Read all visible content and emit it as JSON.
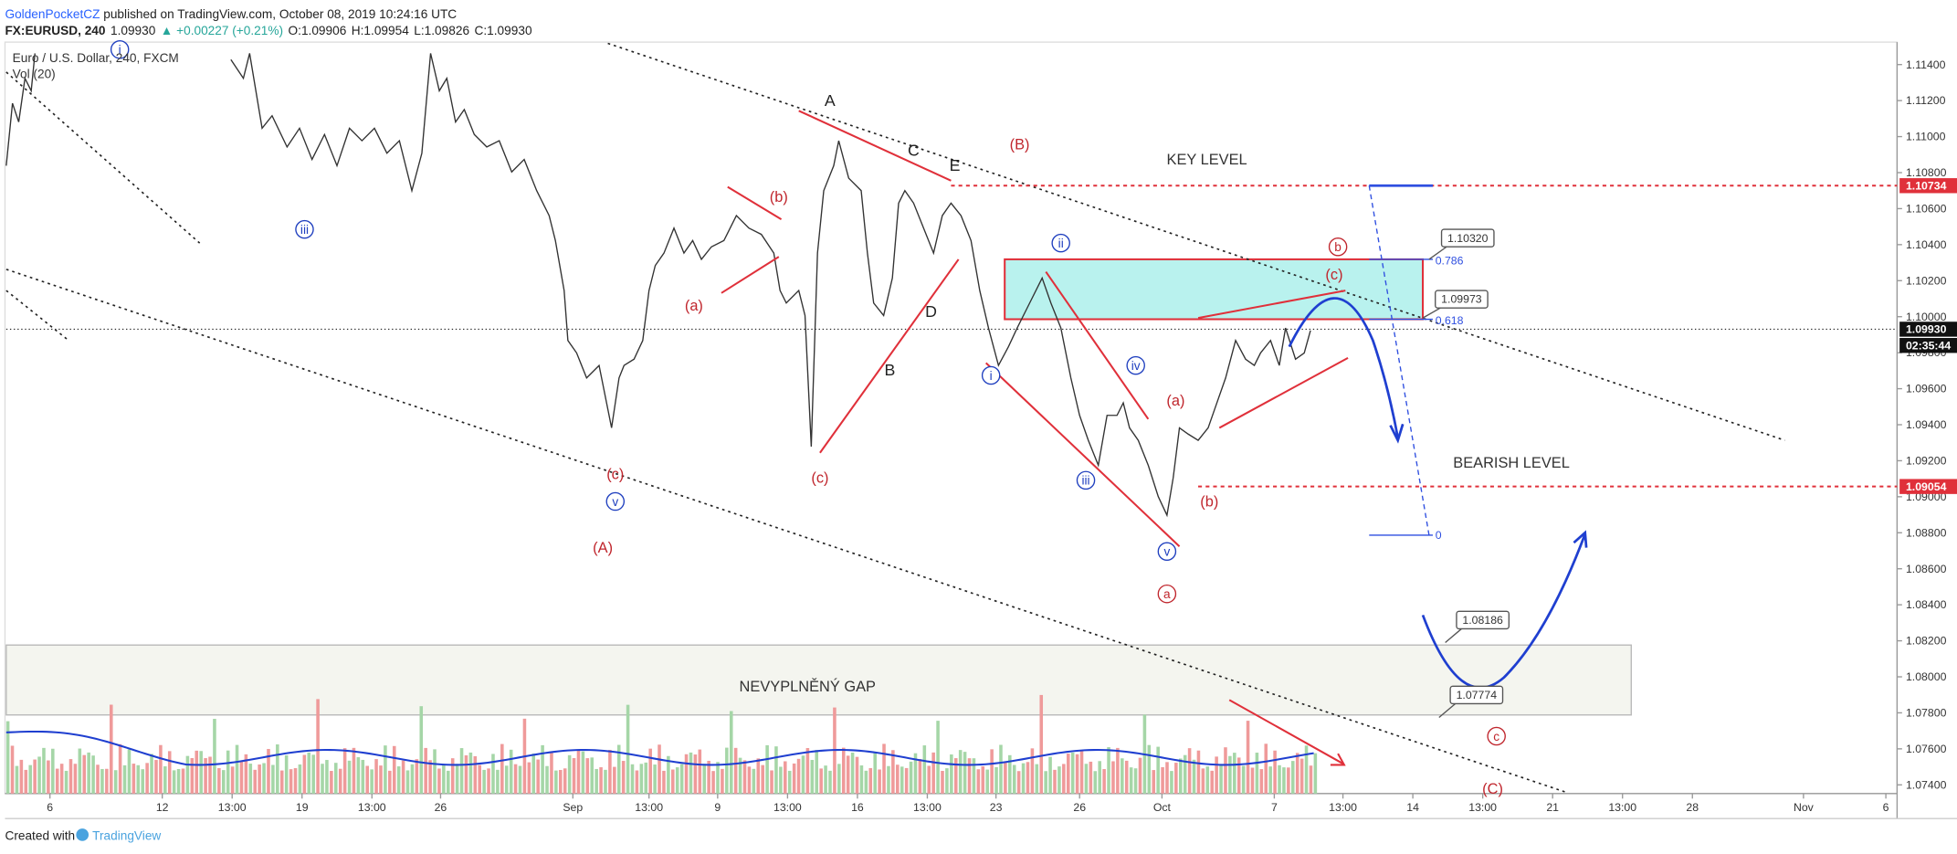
{
  "header": {
    "author": "GoldenPocketCZ",
    "published": " published on TradingView.com, October 08, 2019 10:24:16 UTC",
    "symbol": "FX:EURUSD, 240",
    "last": "1.09930",
    "change": "▲ +0.00227 (+0.21%)",
    "open": "O:1.09906",
    "high": "H:1.09954",
    "low": "L:1.09826",
    "close": "C:1.09930"
  },
  "legend": {
    "instrument": "Euro / U.S. Dollar, 240, FXCM",
    "volume": "Vol (20)"
  },
  "price_axis": [
    "1.11400",
    "1.11200",
    "1.11000",
    "1.10800",
    "1.10600",
    "1.10400",
    "1.10200",
    "1.10000",
    "1.09800",
    "1.09600",
    "1.09400",
    "1.09200",
    "1.09000",
    "1.08800",
    "1.08600",
    "1.08400",
    "1.08200",
    "1.08000",
    "1.07800",
    "1.07600",
    "1.07400"
  ],
  "price_tags": {
    "key": "1.10734",
    "last": "1.09930",
    "countdown": "02:35:44",
    "bearish": "1.09054"
  },
  "time_axis": [
    "6",
    "12",
    "13:00",
    "19",
    "13:00",
    "26",
    "Sep",
    "13:00",
    "9",
    "13:00",
    "16",
    "13:00",
    "23",
    "26",
    "Oct",
    "7",
    "13:00",
    "14",
    "13:00",
    "21",
    "13:00",
    "28",
    "Nov",
    "6"
  ],
  "callouts": [
    "1.10320",
    "1.09973",
    "1.08186",
    "1.07774"
  ],
  "fib": [
    "0.786",
    "0.618",
    "0"
  ],
  "circled_blue": [
    "i",
    "iii",
    "v",
    "i",
    "ii",
    "iv",
    "iii",
    "v"
  ],
  "circled_red": [
    "a",
    "b",
    "c"
  ],
  "wave_red": [
    "(c)",
    "(A)",
    "(a)",
    "(b)",
    "(c)",
    "(B)",
    "(a)",
    "(b)",
    "(c)",
    "(C)"
  ],
  "wave_black": [
    "A",
    "C",
    "E",
    "D",
    "B"
  ],
  "zones": {
    "key_level": "KEY LEVEL",
    "bearish_level": "BEARISH LEVEL",
    "gap": "NEVYPLNĚNÝ GAP"
  },
  "footer": {
    "created": "Created with",
    "brand": "TradingView"
  }
}
